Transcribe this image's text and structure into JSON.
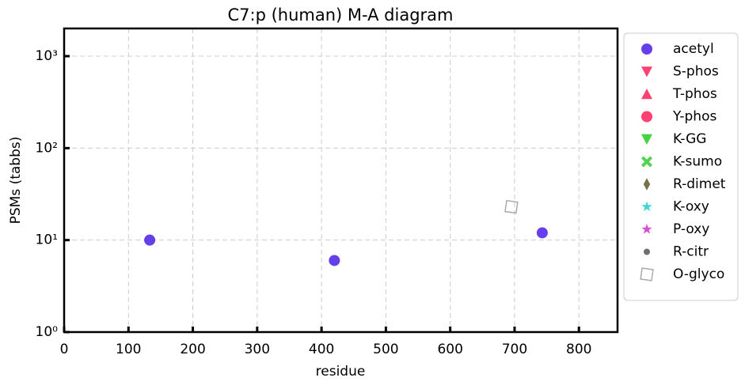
{
  "chart_data": {
    "type": "scatter",
    "title": "C7:p (human) M-A diagram",
    "x_label": "residue",
    "y_label": "PSMs (tabbs)",
    "xlim": [
      0,
      860
    ],
    "xticks": [
      0,
      100,
      200,
      300,
      400,
      500,
      600,
      700,
      800
    ],
    "ylim": [
      1,
      2000
    ],
    "log_y": true,
    "yticks": [
      {
        "value": 1,
        "label": "10⁰"
      },
      {
        "value": 10,
        "label": "10¹"
      },
      {
        "value": 100,
        "label": "10²"
      },
      {
        "value": 1000,
        "label": "10³"
      }
    ],
    "grid": true,
    "legend": "outside right",
    "series": [
      {
        "name": "acetyl",
        "color": "#4a1ee6",
        "marker": "circle",
        "x": [
          133,
          420,
          743
        ],
        "values": [
          10,
          6,
          12
        ]
      },
      {
        "name": "S-phos",
        "color": "#ff2058",
        "marker": "triangle-down",
        "x": [],
        "values": []
      },
      {
        "name": "T-phos",
        "color": "#ff2058",
        "marker": "triangle-up",
        "x": [],
        "values": []
      },
      {
        "name": "Y-phos",
        "color": "#ff2058",
        "marker": "circle",
        "x": [],
        "values": []
      },
      {
        "name": "K-GG",
        "color": "#22cc22",
        "marker": "triangle-down",
        "x": [],
        "values": []
      },
      {
        "name": "K-sumo",
        "color": "#33cc33",
        "marker": "x",
        "x": [],
        "values": []
      },
      {
        "name": "R-dimet",
        "color": "#5e5a2c",
        "marker": "diamond",
        "x": [],
        "values": []
      },
      {
        "name": "K-oxy",
        "color": "#22cccc",
        "marker": "star",
        "x": [],
        "values": []
      },
      {
        "name": "P-oxy",
        "color": "#cc33cc",
        "marker": "star",
        "x": [],
        "values": []
      },
      {
        "name": "R-citr",
        "color": "#555555",
        "marker": "dot",
        "x": [],
        "values": []
      },
      {
        "name": "O-glyco",
        "color": "#aaaaaa",
        "marker": "open-square",
        "x": [
          695
        ],
        "values": [
          23
        ]
      }
    ]
  }
}
